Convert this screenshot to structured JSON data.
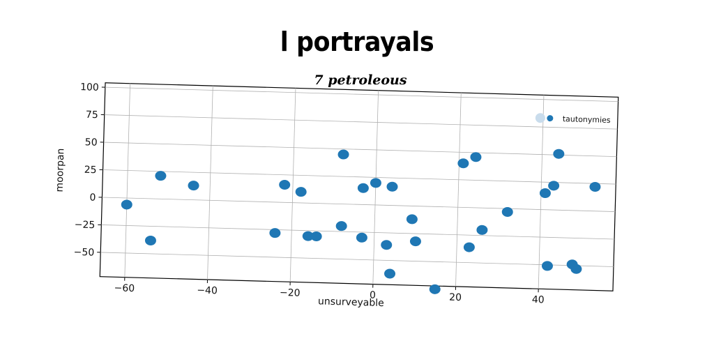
{
  "chart_data": {
    "type": "scatter",
    "title": "l portrayals",
    "subtitle": "7 petroleous",
    "xlabel": "unsurveyable",
    "ylabel": "moorpan",
    "xlim": [
      -66,
      58
    ],
    "ylim": [
      -72,
      104
    ],
    "xticks": [
      -60,
      -40,
      -20,
      0,
      20,
      40
    ],
    "xtick_labels": [
      "−60",
      "−40",
      "−20",
      "0",
      "20",
      "40"
    ],
    "yticks": [
      -50,
      -25,
      0,
      25,
      50,
      75,
      100
    ],
    "ytick_labels": [
      "−50",
      "−25",
      "0",
      "25",
      "50",
      "75",
      "100"
    ],
    "grid": true,
    "legend_position": "top-right",
    "series": [
      {
        "name": "tautonymies",
        "color": "#1f77b4",
        "points": [
          [
            -60,
            -6
          ],
          [
            -54,
            -38
          ],
          [
            -52,
            21
          ],
          [
            -44,
            13
          ],
          [
            -24,
            -28
          ],
          [
            -22,
            16
          ],
          [
            -18,
            10
          ],
          [
            -16,
            -30
          ],
          [
            -14,
            -30
          ],
          [
            -8,
            45
          ],
          [
            -8,
            -20
          ],
          [
            -3,
            15
          ],
          [
            -3,
            -30
          ],
          [
            0,
            20
          ],
          [
            3,
            -36
          ],
          [
            4,
            17
          ],
          [
            4,
            -62
          ],
          [
            9,
            -12
          ],
          [
            10,
            -32
          ],
          [
            15,
            -75
          ],
          [
            21,
            40
          ],
          [
            23,
            -36
          ],
          [
            24,
            46
          ],
          [
            26,
            -20
          ],
          [
            32,
            -3
          ],
          [
            41,
            15
          ],
          [
            42,
            -51
          ],
          [
            43,
            22
          ],
          [
            44,
            51
          ],
          [
            48,
            -49
          ],
          [
            49,
            -53
          ],
          [
            53,
            22
          ]
        ]
      }
    ]
  }
}
